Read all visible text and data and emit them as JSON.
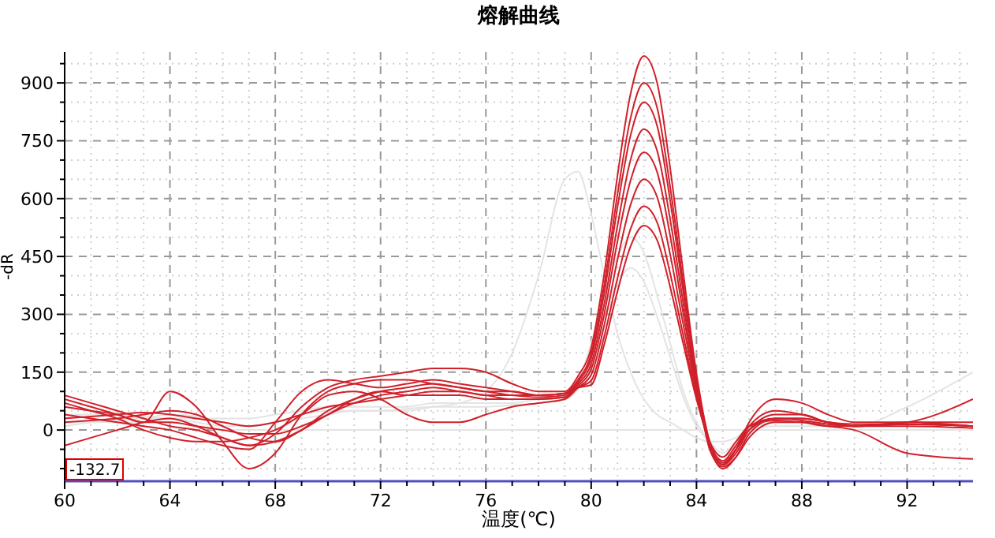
{
  "chart_data": {
    "type": "line",
    "title": "熔解曲线",
    "xlabel": "温度(℃)",
    "ylabel": "-dR",
    "annotations": [
      "-132.7"
    ],
    "grid": true,
    "marker": "none",
    "line_style": "solid",
    "xlim": [
      60,
      94.5
    ],
    "ylim": [
      -132.7,
      980
    ],
    "xticks": [
      60,
      {
        "value": 61,
        "label": null
      },
      {
        "value": 62,
        "label": null
      },
      {
        "value": 63,
        "label": null
      },
      64,
      {
        "value": 65,
        "label": null
      },
      {
        "value": 66,
        "label": null
      },
      {
        "value": 67,
        "label": null
      },
      68,
      {
        "value": 69,
        "label": null
      },
      {
        "value": 70,
        "label": null
      },
      {
        "value": 71,
        "label": null
      },
      72,
      {
        "value": 73,
        "label": null
      },
      {
        "value": 74,
        "label": null
      },
      {
        "value": 75,
        "label": null
      },
      76,
      {
        "value": 77,
        "label": null
      },
      {
        "value": 78,
        "label": null
      },
      {
        "value": 79,
        "label": null
      },
      80,
      {
        "value": 81,
        "label": null
      },
      {
        "value": 82,
        "label": null
      },
      {
        "value": 83,
        "label": null
      },
      84,
      {
        "value": 85,
        "label": null
      },
      {
        "value": 86,
        "label": null
      },
      {
        "value": 87,
        "label": null
      },
      88,
      {
        "value": 89,
        "label": null
      },
      {
        "value": 90,
        "label": null
      },
      {
        "value": 91,
        "label": null
      },
      92,
      {
        "value": 93,
        "label": null
      },
      {
        "value": 94,
        "label": null
      }
    ],
    "yticks": [
      {
        "value": -100,
        "label": null
      },
      {
        "value": -50,
        "label": null
      },
      0,
      {
        "value": 50,
        "label": null
      },
      {
        "value": 100,
        "label": null
      },
      150,
      {
        "value": 200,
        "label": null
      },
      {
        "value": 250,
        "label": null
      },
      300,
      {
        "value": 350,
        "label": null
      },
      {
        "value": 400,
        "label": null
      },
      450,
      {
        "value": 500,
        "label": null
      },
      {
        "value": 550,
        "label": null
      },
      600,
      {
        "value": 650,
        "label": null
      },
      {
        "value": 700,
        "label": null
      },
      750,
      {
        "value": 800,
        "label": null
      },
      {
        "value": 850,
        "label": null
      },
      900,
      {
        "value": 950,
        "label": null
      }
    ],
    "x": [
      60,
      61,
      62,
      63,
      64,
      65,
      66,
      67,
      68,
      69,
      70,
      71,
      72,
      73,
      74,
      75,
      76,
      77,
      78,
      79,
      79.5,
      80,
      80.5,
      81,
      81.5,
      82,
      82.5,
      83,
      83.5,
      84,
      84.5,
      85,
      85.5,
      86,
      87,
      88,
      89,
      90,
      92,
      94.5
    ],
    "series": [
      {
        "color": "#e4e4e4",
        "values": [
          20,
          20,
          20,
          20,
          20,
          10,
          0,
          0,
          0,
          0,
          0,
          0,
          0,
          0,
          0,
          0,
          0,
          0,
          0,
          0,
          0,
          0,
          0,
          0,
          0,
          0,
          0,
          0,
          0,
          0,
          0,
          0,
          0,
          0,
          0,
          0,
          0,
          0,
          0,
          0
        ]
      },
      {
        "color": "#e4e4e4",
        "values": [
          10,
          20,
          30,
          30,
          30,
          20,
          10,
          10,
          20,
          40,
          50,
          50,
          50,
          50,
          60,
          70,
          100,
          200,
          400,
          650,
          670,
          560,
          400,
          250,
          150,
          80,
          40,
          20,
          0,
          -20,
          -30,
          -30,
          -20,
          0,
          10,
          10,
          10,
          10,
          60,
          150
        ]
      },
      {
        "color": "#e4e4e4",
        "values": [
          40,
          40,
          40,
          35,
          30,
          30,
          30,
          30,
          40,
          50,
          60,
          60,
          60,
          60,
          70,
          70,
          70,
          70,
          80,
          90,
          125,
          225,
          350,
          450,
          500,
          460,
          350,
          225,
          100,
          20,
          -30,
          -70,
          -40,
          0,
          20,
          20,
          15,
          10,
          15,
          10
        ]
      },
      {
        "color": "#e4e4e4",
        "values": [
          20,
          20,
          25,
          30,
          40,
          35,
          20,
          10,
          20,
          30,
          40,
          50,
          50,
          55,
          60,
          60,
          60,
          65,
          70,
          80,
          105,
          190,
          295,
          380,
          420,
          385,
          295,
          190,
          85,
          10,
          -30,
          -60,
          -30,
          0,
          20,
          20,
          15,
          15,
          20,
          20
        ]
      },
      {
        "color": "#d0202a",
        "values": [
          90,
          70,
          50,
          30,
          10,
          0,
          -20,
          -40,
          -10,
          60,
          110,
          130,
          140,
          150,
          160,
          160,
          150,
          120,
          100,
          100,
          140,
          213,
          407,
          660,
          873,
          970,
          902,
          679,
          407,
          146,
          -30,
          -90,
          -50,
          20,
          80,
          70,
          40,
          20,
          20,
          10
        ]
      },
      {
        "color": "#d0202a",
        "values": [
          60,
          50,
          40,
          20,
          100,
          60,
          -30,
          -100,
          -60,
          40,
          100,
          120,
          130,
          130,
          120,
          110,
          100,
          100,
          90,
          95,
          130,
          198,
          378,
          612,
          810,
          900,
          837,
          630,
          378,
          135,
          -40,
          -100,
          -70,
          -10,
          30,
          30,
          20,
          10,
          20,
          80
        ]
      },
      {
        "color": "#d0202a",
        "values": [
          40,
          30,
          20,
          10,
          0,
          -20,
          -40,
          -50,
          20,
          100,
          130,
          120,
          110,
          120,
          130,
          120,
          110,
          100,
          90,
          95,
          125,
          187,
          357,
          578,
          765,
          850,
          790,
          595,
          357,
          128,
          -50,
          -95,
          -70,
          -20,
          20,
          20,
          10,
          0,
          -60,
          -75
        ]
      },
      {
        "color": "#d0202a",
        "values": [
          20,
          25,
          30,
          40,
          50,
          40,
          10,
          -20,
          -30,
          0,
          50,
          80,
          100,
          110,
          120,
          110,
          100,
          90,
          85,
          90,
          120,
          172,
          328,
          530,
          702,
          780,
          725,
          546,
          328,
          117,
          -40,
          -90,
          -60,
          0,
          40,
          40,
          20,
          15,
          15,
          10
        ]
      },
      {
        "color": "#d0202a",
        "values": [
          -40,
          -20,
          0,
          20,
          30,
          10,
          -20,
          -40,
          -30,
          0,
          40,
          70,
          90,
          100,
          110,
          100,
          90,
          80,
          80,
          85,
          115,
          158,
          302,
          490,
          648,
          720,
          670,
          504,
          302,
          108,
          -30,
          -85,
          -50,
          0,
          30,
          30,
          20,
          10,
          15,
          10
        ]
      },
      {
        "color": "#d0202a",
        "values": [
          70,
          50,
          30,
          0,
          -20,
          -30,
          -30,
          -20,
          0,
          40,
          90,
          100,
          80,
          40,
          20,
          20,
          40,
          60,
          70,
          80,
          110,
          143,
          273,
          442,
          585,
          650,
          605,
          455,
          273,
          98,
          -40,
          -90,
          -50,
          10,
          50,
          40,
          20,
          10,
          20,
          20
        ]
      },
      {
        "color": "#d0202a",
        "values": [
          80,
          60,
          40,
          20,
          20,
          10,
          0,
          -10,
          -10,
          10,
          40,
          80,
          100,
          90,
          90,
          90,
          80,
          80,
          80,
          85,
          110,
          128,
          244,
          394,
          522,
          580,
          539,
          406,
          244,
          87,
          -35,
          -80,
          -40,
          10,
          30,
          25,
          15,
          10,
          15,
          10
        ]
      },
      {
        "color": "#d0202a",
        "values": [
          30,
          35,
          40,
          45,
          40,
          30,
          20,
          10,
          20,
          40,
          60,
          70,
          80,
          90,
          100,
          100,
          90,
          90,
          90,
          95,
          110,
          117,
          223,
          360,
          477,
          530,
          493,
          371,
          223,
          80,
          -30,
          -70,
          -30,
          10,
          25,
          20,
          10,
          10,
          10,
          5
        ]
      }
    ]
  }
}
